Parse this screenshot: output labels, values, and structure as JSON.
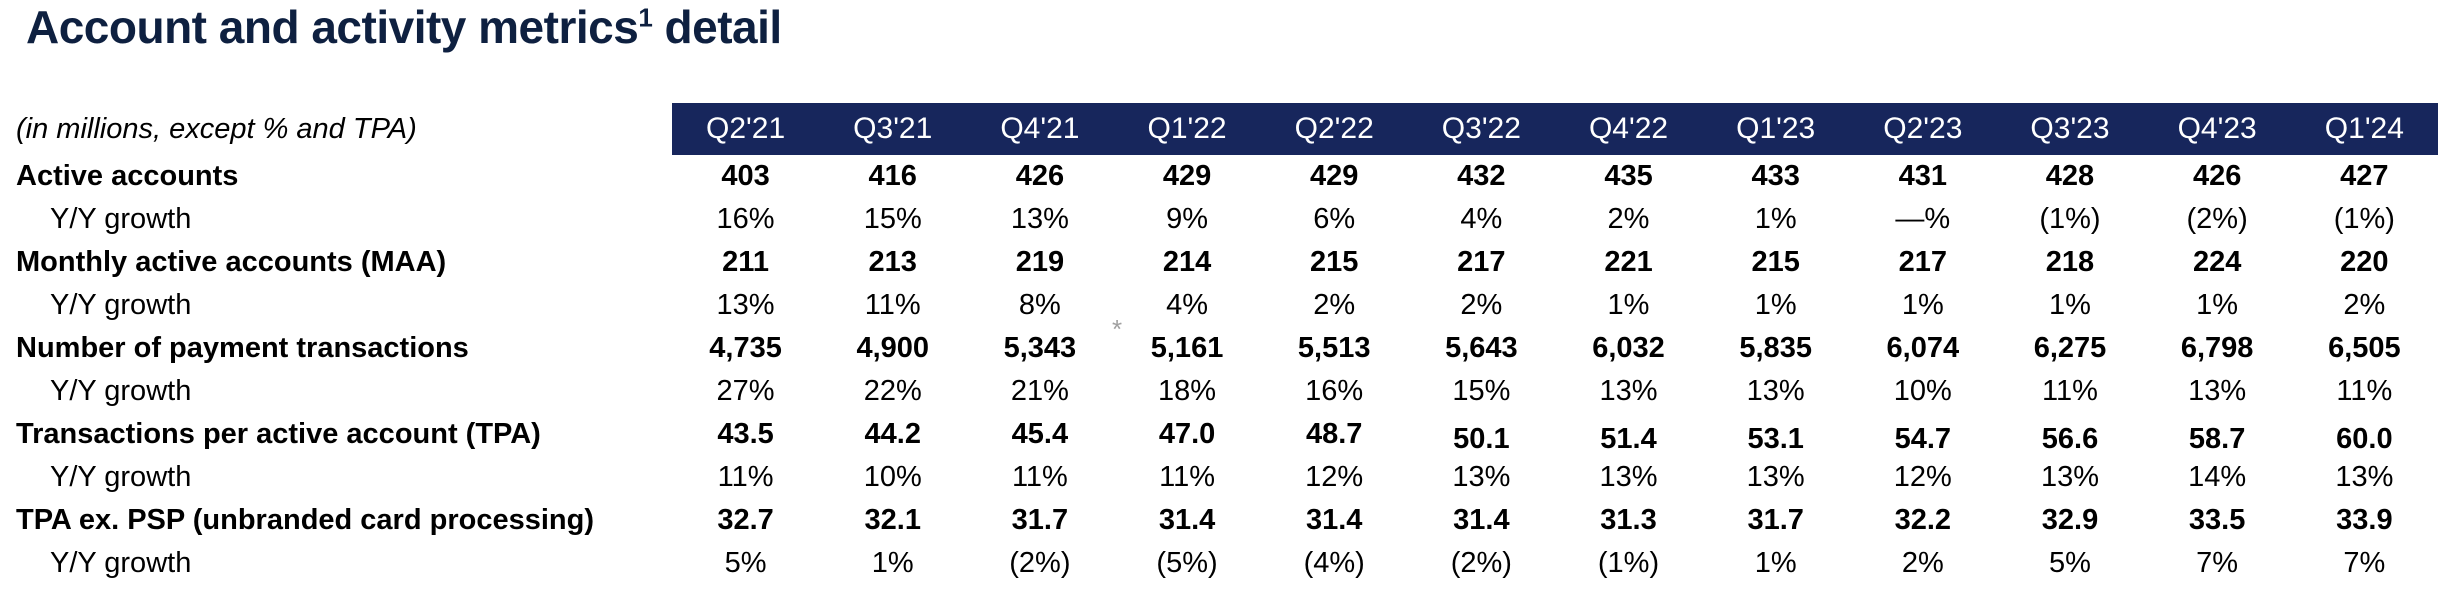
{
  "title": {
    "main": "Account and activity metrics",
    "sup": "1",
    "suffix": " detail"
  },
  "table": {
    "note": "(in millions, except % and TPA)",
    "columns": [
      "Q2'21",
      "Q3'21",
      "Q4'21",
      "Q1'22",
      "Q2'22",
      "Q3'22",
      "Q4'22",
      "Q1'23",
      "Q2'23",
      "Q3'23",
      "Q4'23",
      "Q1'24"
    ],
    "rows": [
      {
        "label": "Active accounts",
        "style": "metric",
        "values": [
          "403",
          "416",
          "426",
          "429",
          "429",
          "432",
          "435",
          "433",
          "431",
          "428",
          "426",
          "427"
        ]
      },
      {
        "label": "Y/Y growth",
        "style": "growth",
        "values": [
          "16%",
          "15%",
          "13%",
          "9%",
          "6%",
          "4%",
          "2%",
          "1%",
          "—%",
          "(1%)",
          "(2%)",
          "(1%)"
        ]
      },
      {
        "label": "Monthly active accounts (MAA)",
        "style": "metric",
        "values": [
          "211",
          "213",
          "219",
          "214",
          "215",
          "217",
          "221",
          "215",
          "217",
          "218",
          "224",
          "220"
        ]
      },
      {
        "label": "Y/Y growth",
        "style": "growth",
        "values": [
          "13%",
          "11%",
          "8%",
          "4%",
          "2%",
          "2%",
          "1%",
          "1%",
          "1%",
          "1%",
          "1%",
          "2%"
        ]
      },
      {
        "label": "Number of payment transactions",
        "style": "metric",
        "values": [
          "4,735",
          "4,900",
          "5,343",
          "5,161",
          "5,513",
          "5,643",
          "6,032",
          "5,835",
          "6,074",
          "6,275",
          "6,798",
          "6,505"
        ]
      },
      {
        "label": "Y/Y growth",
        "style": "growth",
        "values": [
          "27%",
          "22%",
          "21%",
          "18%",
          "16%",
          "15%",
          "13%",
          "13%",
          "10%",
          "11%",
          "13%",
          "11%"
        ]
      },
      {
        "label": "Transactions per active account (TPA)",
        "style": "metric",
        "baseline_shift_from": 5,
        "values": [
          "43.5",
          "44.2",
          "45.4",
          "47.0",
          "48.7",
          "50.1",
          "51.4",
          "53.1",
          "54.7",
          "56.6",
          "58.7",
          "60.0"
        ]
      },
      {
        "label": "Y/Y growth",
        "style": "growth",
        "values": [
          "11%",
          "10%",
          "11%",
          "11%",
          "12%",
          "13%",
          "13%",
          "13%",
          "12%",
          "13%",
          "14%",
          "13%"
        ]
      },
      {
        "label": "TPA ex. PSP (unbranded card processing)",
        "style": "metric",
        "values": [
          "32.7",
          "32.1",
          "31.7",
          "31.4",
          "31.4",
          "31.4",
          "31.3",
          "31.7",
          "32.2",
          "32.9",
          "33.5",
          "33.9"
        ]
      },
      {
        "label": "Y/Y growth",
        "style": "growth",
        "values": [
          "5%",
          "1%",
          "(2%)",
          "(5%)",
          "(4%)",
          "(2%)",
          "(1%)",
          "1%",
          "2%",
          "5%",
          "7%",
          "7%"
        ]
      }
    ],
    "footnote_marker": "*"
  },
  "colors": {
    "band_navy": "#17265c",
    "title_navy": "#0e2040",
    "footnote_gray": "#a0a0a0"
  }
}
